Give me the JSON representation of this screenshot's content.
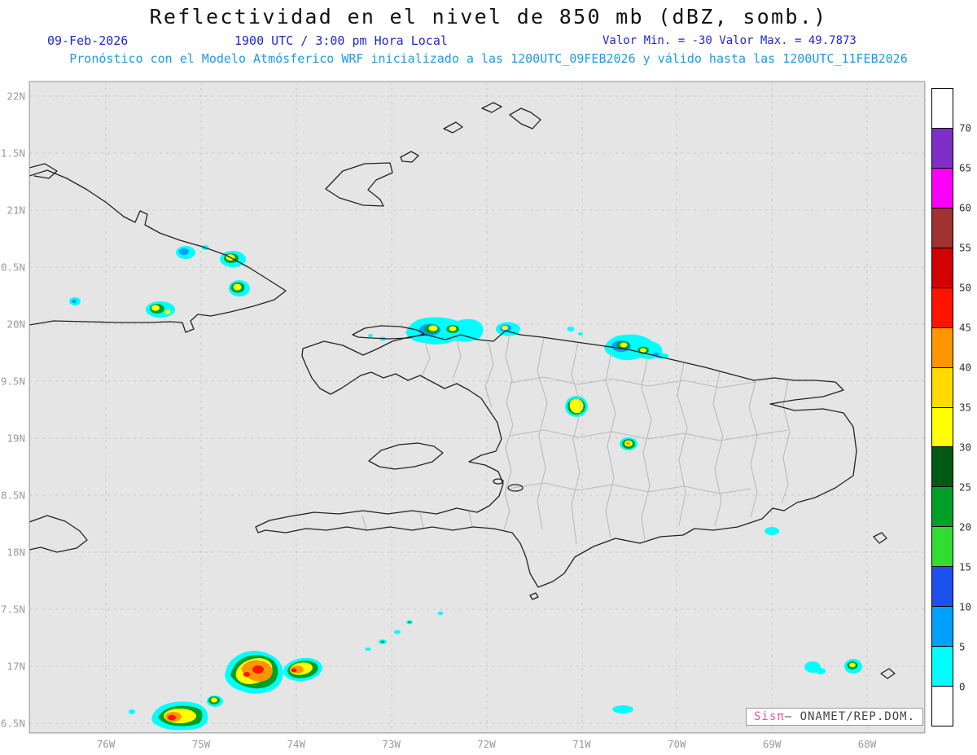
{
  "header": {
    "title": "Reflectividad en el nivel de 850 mb (dBZ, somb.)",
    "date": "09-Feb-2026",
    "time": "1900 UTC / 3:00 pm Hora Local",
    "min_max": "Valor Min. = -30  Valor Max. = 49.7873",
    "forecast": "Pronóstico con el Modelo Atmósferico WRF inicializado a las 1200UTC_09FEB2026 y válido hasta las  1200UTC_11FEB2026"
  },
  "map": {
    "field": "Reflectividad 850 mb",
    "units": "dBZ",
    "value_min": -30,
    "value_max": 49.7873
  },
  "axes": {
    "lat_labels": [
      "22N",
      "21.5N",
      "21N",
      "20.5N",
      "20N",
      "19.5N",
      "19N",
      "18.5N",
      "18N",
      "17.5N",
      "17N",
      "16.5N"
    ],
    "lon_labels": [
      "76W",
      "75W",
      "74W",
      "73W",
      "72W",
      "71W",
      "70W",
      "69W",
      "68W"
    ]
  },
  "colorbar": {
    "tick_labels": [
      "70",
      "65",
      "60",
      "55",
      "50",
      "45",
      "40",
      "35",
      "30",
      "25",
      "20",
      "15",
      "10",
      "5",
      "0"
    ],
    "colors_top_to_bottom": [
      "#FFFFFF",
      "#7D2FC8",
      "#FA00FA",
      "#A03232",
      "#D20000",
      "#FF1400",
      "#FF9600",
      "#FFDC00",
      "#FFFF00",
      "#005A14",
      "#00A028",
      "#32DC32",
      "#1E50F0",
      "#00A0FF",
      "#00FFFF",
      "#FFFFFF"
    ]
  },
  "watermark": {
    "brand": "Sisπ",
    "suffix": "– ONAMET/REP.DOM."
  },
  "colors": {
    "header_blue": "#2228C8",
    "header_lightblue": "#1F9BE0",
    "plot_background": "#E5E5E5",
    "brand_pink": "#EE55A3"
  }
}
